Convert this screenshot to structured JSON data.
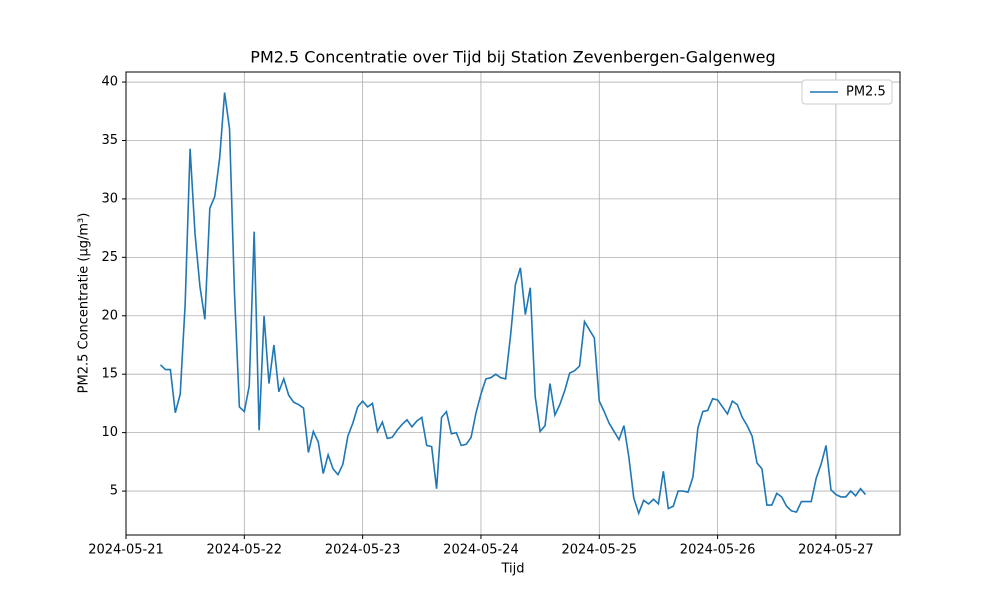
{
  "chart_data": {
    "type": "line",
    "title": "PM2.5 Concentratie over Tijd bij Station Zevenbergen-Galgenweg",
    "x_label": "Tijd",
    "y_label": "PM2.5 Concentratie (µg/m³)",
    "x": [
      "2024-05-21 07:00",
      "2024-05-21 08:00",
      "2024-05-21 09:00",
      "2024-05-21 10:00",
      "2024-05-21 11:00",
      "2024-05-21 12:00",
      "2024-05-21 13:00",
      "2024-05-21 14:00",
      "2024-05-21 15:00",
      "2024-05-21 16:00",
      "2024-05-21 17:00",
      "2024-05-21 18:00",
      "2024-05-21 19:00",
      "2024-05-21 20:00",
      "2024-05-21 21:00",
      "2024-05-21 22:00",
      "2024-05-21 23:00",
      "2024-05-22 00:00",
      "2024-05-22 01:00",
      "2024-05-22 02:00",
      "2024-05-22 03:00",
      "2024-05-22 04:00",
      "2024-05-22 05:00",
      "2024-05-22 06:00",
      "2024-05-22 07:00",
      "2024-05-22 08:00",
      "2024-05-22 09:00",
      "2024-05-22 10:00",
      "2024-05-22 11:00",
      "2024-05-22 12:00",
      "2024-05-22 13:00",
      "2024-05-22 14:00",
      "2024-05-22 15:00",
      "2024-05-22 16:00",
      "2024-05-22 17:00",
      "2024-05-22 18:00",
      "2024-05-22 19:00",
      "2024-05-22 20:00",
      "2024-05-22 21:00",
      "2024-05-22 22:00",
      "2024-05-22 23:00",
      "2024-05-23 00:00",
      "2024-05-23 01:00",
      "2024-05-23 02:00",
      "2024-05-23 03:00",
      "2024-05-23 04:00",
      "2024-05-23 05:00",
      "2024-05-23 06:00",
      "2024-05-23 07:00",
      "2024-05-23 08:00",
      "2024-05-23 09:00",
      "2024-05-23 10:00",
      "2024-05-23 11:00",
      "2024-05-23 12:00",
      "2024-05-23 13:00",
      "2024-05-23 14:00",
      "2024-05-23 15:00",
      "2024-05-23 16:00",
      "2024-05-23 17:00",
      "2024-05-23 18:00",
      "2024-05-23 19:00",
      "2024-05-23 20:00",
      "2024-05-23 21:00",
      "2024-05-23 22:00",
      "2024-05-23 23:00",
      "2024-05-24 00:00",
      "2024-05-24 01:00",
      "2024-05-24 02:00",
      "2024-05-24 03:00",
      "2024-05-24 04:00",
      "2024-05-24 05:00",
      "2024-05-24 06:00",
      "2024-05-24 07:00",
      "2024-05-24 08:00",
      "2024-05-24 09:00",
      "2024-05-24 10:00",
      "2024-05-24 11:00",
      "2024-05-24 12:00",
      "2024-05-24 13:00",
      "2024-05-24 14:00",
      "2024-05-24 15:00",
      "2024-05-24 16:00",
      "2024-05-24 17:00",
      "2024-05-24 18:00",
      "2024-05-24 19:00",
      "2024-05-24 20:00",
      "2024-05-24 21:00",
      "2024-05-24 22:00",
      "2024-05-24 23:00",
      "2024-05-25 00:00",
      "2024-05-25 01:00",
      "2024-05-25 02:00",
      "2024-05-25 03:00",
      "2024-05-25 04:00",
      "2024-05-25 05:00",
      "2024-05-25 06:00",
      "2024-05-25 07:00",
      "2024-05-25 08:00",
      "2024-05-25 09:00",
      "2024-05-25 10:00",
      "2024-05-25 11:00",
      "2024-05-25 12:00",
      "2024-05-25 13:00",
      "2024-05-25 14:00",
      "2024-05-25 15:00",
      "2024-05-25 16:00",
      "2024-05-25 17:00",
      "2024-05-25 18:00",
      "2024-05-25 19:00",
      "2024-05-25 20:00",
      "2024-05-25 21:00",
      "2024-05-25 22:00",
      "2024-05-25 23:00",
      "2024-05-26 00:00",
      "2024-05-26 01:00",
      "2024-05-26 02:00",
      "2024-05-26 03:00",
      "2024-05-26 04:00",
      "2024-05-26 05:00",
      "2024-05-26 06:00",
      "2024-05-26 07:00",
      "2024-05-26 08:00",
      "2024-05-26 09:00",
      "2024-05-26 10:00",
      "2024-05-26 11:00",
      "2024-05-26 12:00",
      "2024-05-26 13:00",
      "2024-05-26 14:00",
      "2024-05-26 15:00",
      "2024-05-26 16:00",
      "2024-05-26 17:00",
      "2024-05-26 18:00",
      "2024-05-26 19:00",
      "2024-05-26 20:00",
      "2024-05-26 21:00",
      "2024-05-26 22:00",
      "2024-05-26 23:00",
      "2024-05-27 00:00",
      "2024-05-27 01:00",
      "2024-05-27 02:00",
      "2024-05-27 03:00",
      "2024-05-27 04:00",
      "2024-05-27 05:00",
      "2024-05-27 06:00"
    ],
    "series": [
      {
        "name": "PM2.5",
        "color": "#1f77b4",
        "values": [
          15.8,
          15.4,
          15.4,
          11.7,
          13.3,
          21,
          34.3,
          27,
          22.5,
          19.7,
          29.2,
          30.2,
          33.5,
          39.1,
          36,
          22,
          12.2,
          11.8,
          14,
          27.2,
          10.2,
          20,
          14.2,
          17.5,
          13.5,
          14.6,
          13.2,
          12.6,
          12.4,
          12.1,
          8.3,
          10.1,
          9.2,
          6.5,
          8.1,
          6.9,
          6.4,
          7.3,
          9.7,
          10.8,
          12.2,
          12.7,
          12.2,
          12.5,
          10.1,
          10.9,
          9.5,
          9.6,
          10.2,
          10.7,
          11.1,
          10.5,
          11,
          11.3,
          8.9,
          8.8,
          5.2,
          11.3,
          11.8,
          9.9,
          10,
          8.9,
          9,
          9.6,
          11.7,
          13.3,
          14.6,
          14.7,
          15,
          14.7,
          14.6,
          18.3,
          22.7,
          24.1,
          20.1,
          22.4,
          13.1,
          10.1,
          10.6,
          14.2,
          11.5,
          12.4,
          13.6,
          15.1,
          15.3,
          15.7,
          19.5,
          18.8,
          18.1,
          12.7,
          11.8,
          10.8,
          10.1,
          9.4,
          10.6,
          7.9,
          4.4,
          3.1,
          4.2,
          3.9,
          4.3,
          3.9,
          6.7,
          3.5,
          3.7,
          5,
          5,
          4.9,
          6.2,
          10.4,
          11.8,
          11.9,
          12.9,
          12.8,
          12.2,
          11.6,
          12.7,
          12.4,
          11.3,
          10.6,
          9.7,
          7.4,
          6.9,
          3.8,
          3.8,
          4.8,
          4.5,
          3.7,
          3.3,
          3.2,
          4.1,
          4.1,
          4.1,
          6.1,
          7.3,
          8.9,
          5.1,
          4.7,
          4.5,
          4.5,
          5,
          4.6,
          5.2,
          4.7
        ]
      }
    ],
    "xlim": [
      "2024-05-21 00:00",
      "2024-05-27 13:00"
    ],
    "xticks": [
      "2024-05-21",
      "2024-05-22",
      "2024-05-23",
      "2024-05-24",
      "2024-05-25",
      "2024-05-26",
      "2024-05-27"
    ],
    "ylim": [
      1.24,
      40.86
    ],
    "yticks": [
      5,
      10,
      15,
      20,
      25,
      30,
      35,
      40
    ],
    "grid": true,
    "legend": "upper right"
  }
}
